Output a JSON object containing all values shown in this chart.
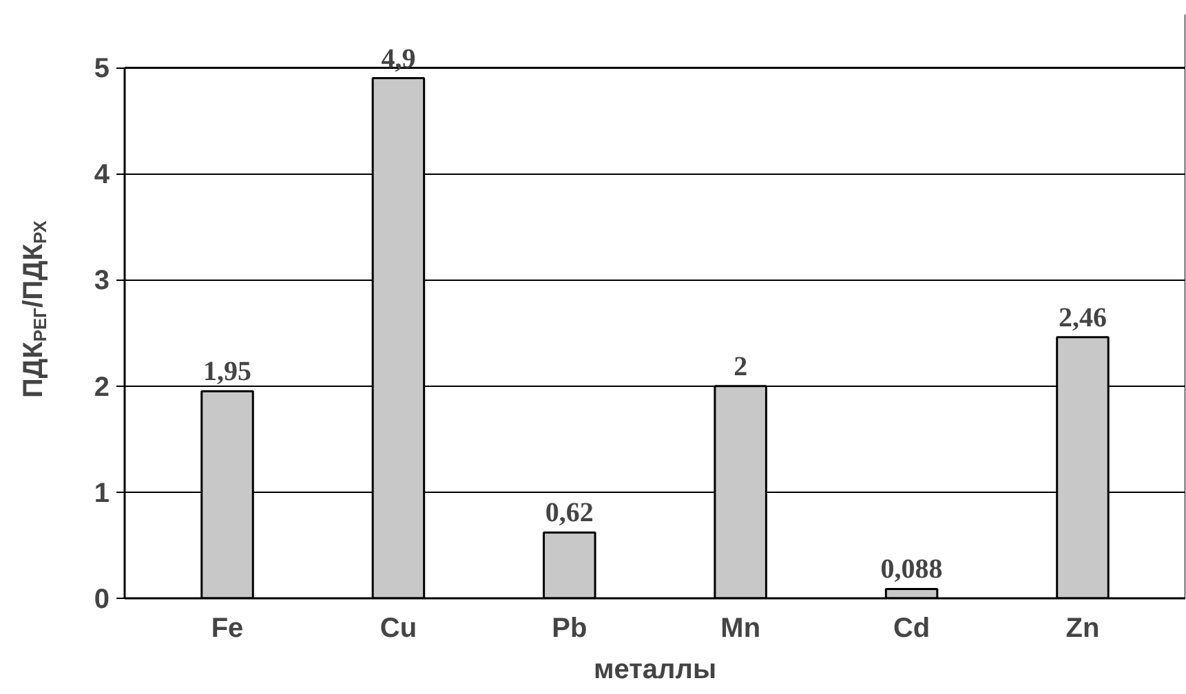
{
  "chart_data": {
    "type": "bar",
    "xlabel": "металлы",
    "ylabel": "ПДК$_{РЕГ}$/ПДК$_{РХ}$",
    "categories": [
      "Fe",
      "Cu",
      "Pb",
      "Mn",
      "Cd",
      "Zn"
    ],
    "values": [
      1.95,
      4.9,
      0.62,
      2,
      0.088,
      2.46
    ],
    "value_labels": [
      "1,95",
      "4,9",
      "0,62",
      "2",
      "0,088",
      "2,46"
    ],
    "color": "#c8c8c8",
    "ylim": [
      0,
      5
    ],
    "yticks": [
      0,
      1,
      2,
      3,
      4,
      5
    ],
    "grid": "y"
  }
}
